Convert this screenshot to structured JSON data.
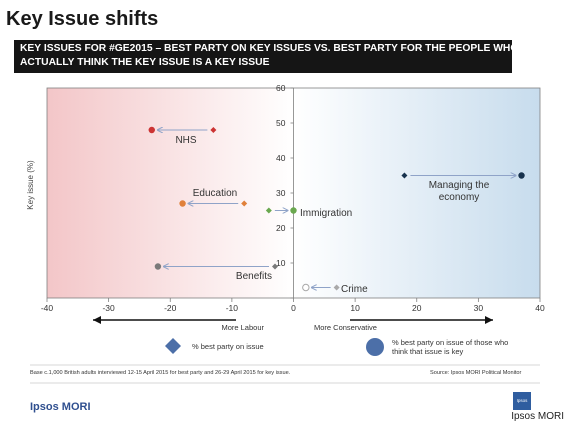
{
  "header": {
    "title": "Key Issue shifts",
    "subtitle_line1": "KEY ISSUES FOR #GE2015 – BEST PARTY ON KEY ISSUES VS. BEST PARTY FOR THE PEOPLE WHO",
    "subtitle_line2": "ACTUALLY THINK THE KEY ISSUE IS A KEY ISSUE"
  },
  "chart_data": {
    "type": "scatter",
    "ylabel": "Key issue (%)",
    "xlim": [
      -40,
      40
    ],
    "ylim": [
      0,
      60
    ],
    "x_ticks": [
      -40,
      -30,
      -20,
      -10,
      0,
      10,
      20,
      30,
      40
    ],
    "y_ticks": [
      0,
      10,
      20,
      30,
      40,
      50,
      60
    ],
    "direction_labels": {
      "left": "More Labour",
      "right": "More Conservative"
    },
    "colors": {
      "labour": "#cc3333",
      "education": "#e0803a",
      "immigration": "#6aa84f",
      "benefits": "#7a7a7a",
      "crime": "#a9a9a9",
      "economy": "#17324d",
      "arrow": "#8fa3c8"
    },
    "issues": [
      {
        "name": "NHS",
        "best_party_all": {
          "x": -13,
          "y": 48
        },
        "best_party_issue": {
          "x": -23,
          "y": 48
        },
        "color": "#cc3333"
      },
      {
        "name": "Education",
        "best_party_all": {
          "x": -8,
          "y": 27
        },
        "best_party_issue": {
          "x": -18,
          "y": 27
        },
        "color": "#e0803a"
      },
      {
        "name": "Immigration",
        "best_party_all": {
          "x": -4,
          "y": 25
        },
        "best_party_issue": {
          "x": 0,
          "y": 25
        },
        "color": "#6aa84f"
      },
      {
        "name": "Managing the economy",
        "best_party_all": {
          "x": 18,
          "y": 35
        },
        "best_party_issue": {
          "x": 37,
          "y": 35
        },
        "color": "#17324d"
      },
      {
        "name": "Benefits",
        "best_party_all": {
          "x": -3,
          "y": 9
        },
        "best_party_issue": {
          "x": -22,
          "y": 9
        },
        "color": "#7a7a7a"
      },
      {
        "name": "Crime",
        "best_party_all": {
          "x": 7,
          "y": 3
        },
        "best_party_issue": {
          "x": 2,
          "y": 3
        },
        "color": "#a9a9a9"
      }
    ],
    "point_labels": {
      "nhs": "NHS",
      "education": "Education",
      "immigration": "Immigration",
      "economy_line1": "Managing the",
      "economy_line2": "economy",
      "benefits": "Benefits",
      "crime": "Crime"
    },
    "legend": {
      "all": "% best party on issue",
      "issue_line1": "% best party on issue of those who",
      "issue_line2": "think that issue is key"
    }
  },
  "footer": {
    "base": "Base c.1,000 British adults interviewed 12-15 April 2015 for best party and 26-29 April 2015 for key issue.",
    "source": "Source: Ipsos MORI Political Monitor",
    "brand": "Ipsos MORI",
    "logo_text": "Ipsos",
    "watermark": "Ipsos MORI"
  }
}
